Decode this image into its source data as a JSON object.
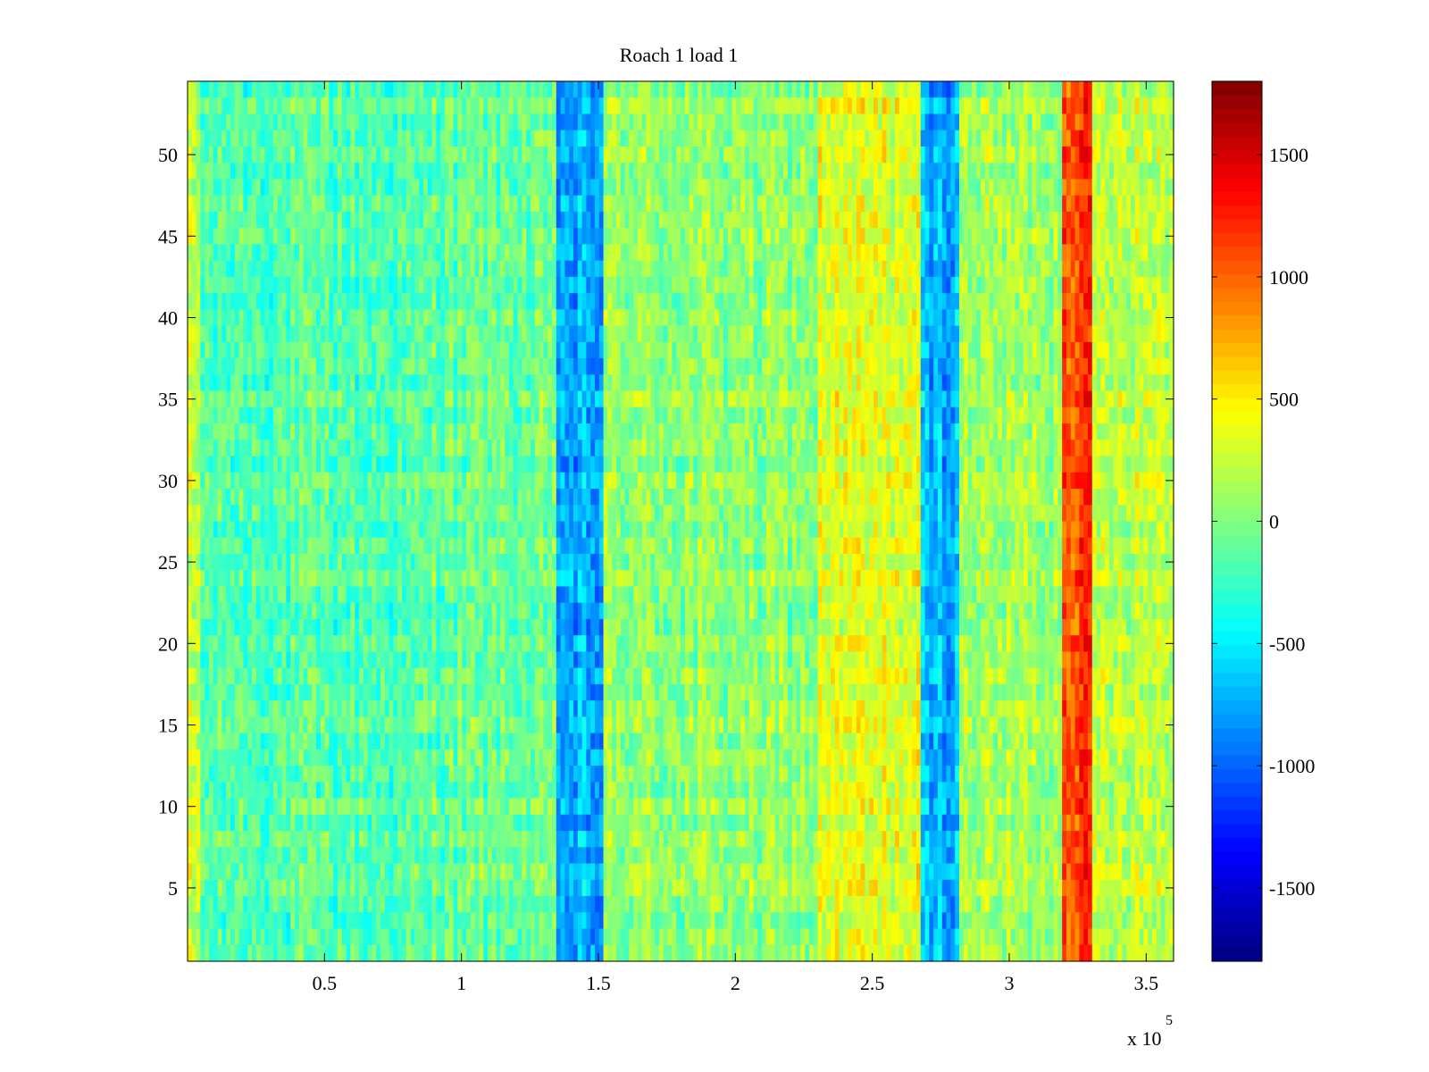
{
  "chart_data": {
    "type": "heatmap",
    "title": "Roach 1 load 1",
    "xlabel": "",
    "ylabel": "",
    "x_multiplier_label": {
      "base": "x 10",
      "exponent": "5"
    },
    "xlim": [
      0,
      3.6
    ],
    "ylim": [
      0.5,
      54.5
    ],
    "x_ticks": [
      0.5,
      1,
      1.5,
      2,
      2.5,
      3,
      3.5
    ],
    "x_tick_labels": [
      "0.5",
      "1",
      "1.5",
      "2",
      "2.5",
      "3",
      "3.5"
    ],
    "y_ticks": [
      5,
      10,
      15,
      20,
      25,
      30,
      35,
      40,
      45,
      50
    ],
    "y_tick_labels": [
      "5",
      "10",
      "15",
      "20",
      "25",
      "30",
      "35",
      "40",
      "45",
      "50"
    ],
    "rows": 54,
    "colormap": "jet",
    "colorbar": {
      "range": [
        -1800,
        1800
      ],
      "ticks": [
        -1500,
        -1000,
        -500,
        0,
        500,
        1000,
        1500
      ],
      "tick_labels": [
        "-1500",
        "-1000",
        "-500",
        "0",
        "500",
        "1000",
        "1500"
      ]
    },
    "column_bands": [
      {
        "x_start": 0.0,
        "x_end": 0.05,
        "mean_value": 200
      },
      {
        "x_start": 0.05,
        "x_end": 0.9,
        "mean_value": -150
      },
      {
        "x_start": 0.9,
        "x_end": 1.34,
        "mean_value": -80
      },
      {
        "x_start": 1.34,
        "x_end": 1.52,
        "mean_value": -750
      },
      {
        "x_start": 1.52,
        "x_end": 2.3,
        "mean_value": 60
      },
      {
        "x_start": 2.3,
        "x_end": 2.68,
        "mean_value": 350
      },
      {
        "x_start": 2.68,
        "x_end": 2.82,
        "mean_value": -700
      },
      {
        "x_start": 2.82,
        "x_end": 3.19,
        "mean_value": 130
      },
      {
        "x_start": 3.19,
        "x_end": 3.31,
        "mean_value": 1150
      },
      {
        "x_start": 3.31,
        "x_end": 3.6,
        "mean_value": 250
      }
    ],
    "noise_amplitude": 300
  }
}
